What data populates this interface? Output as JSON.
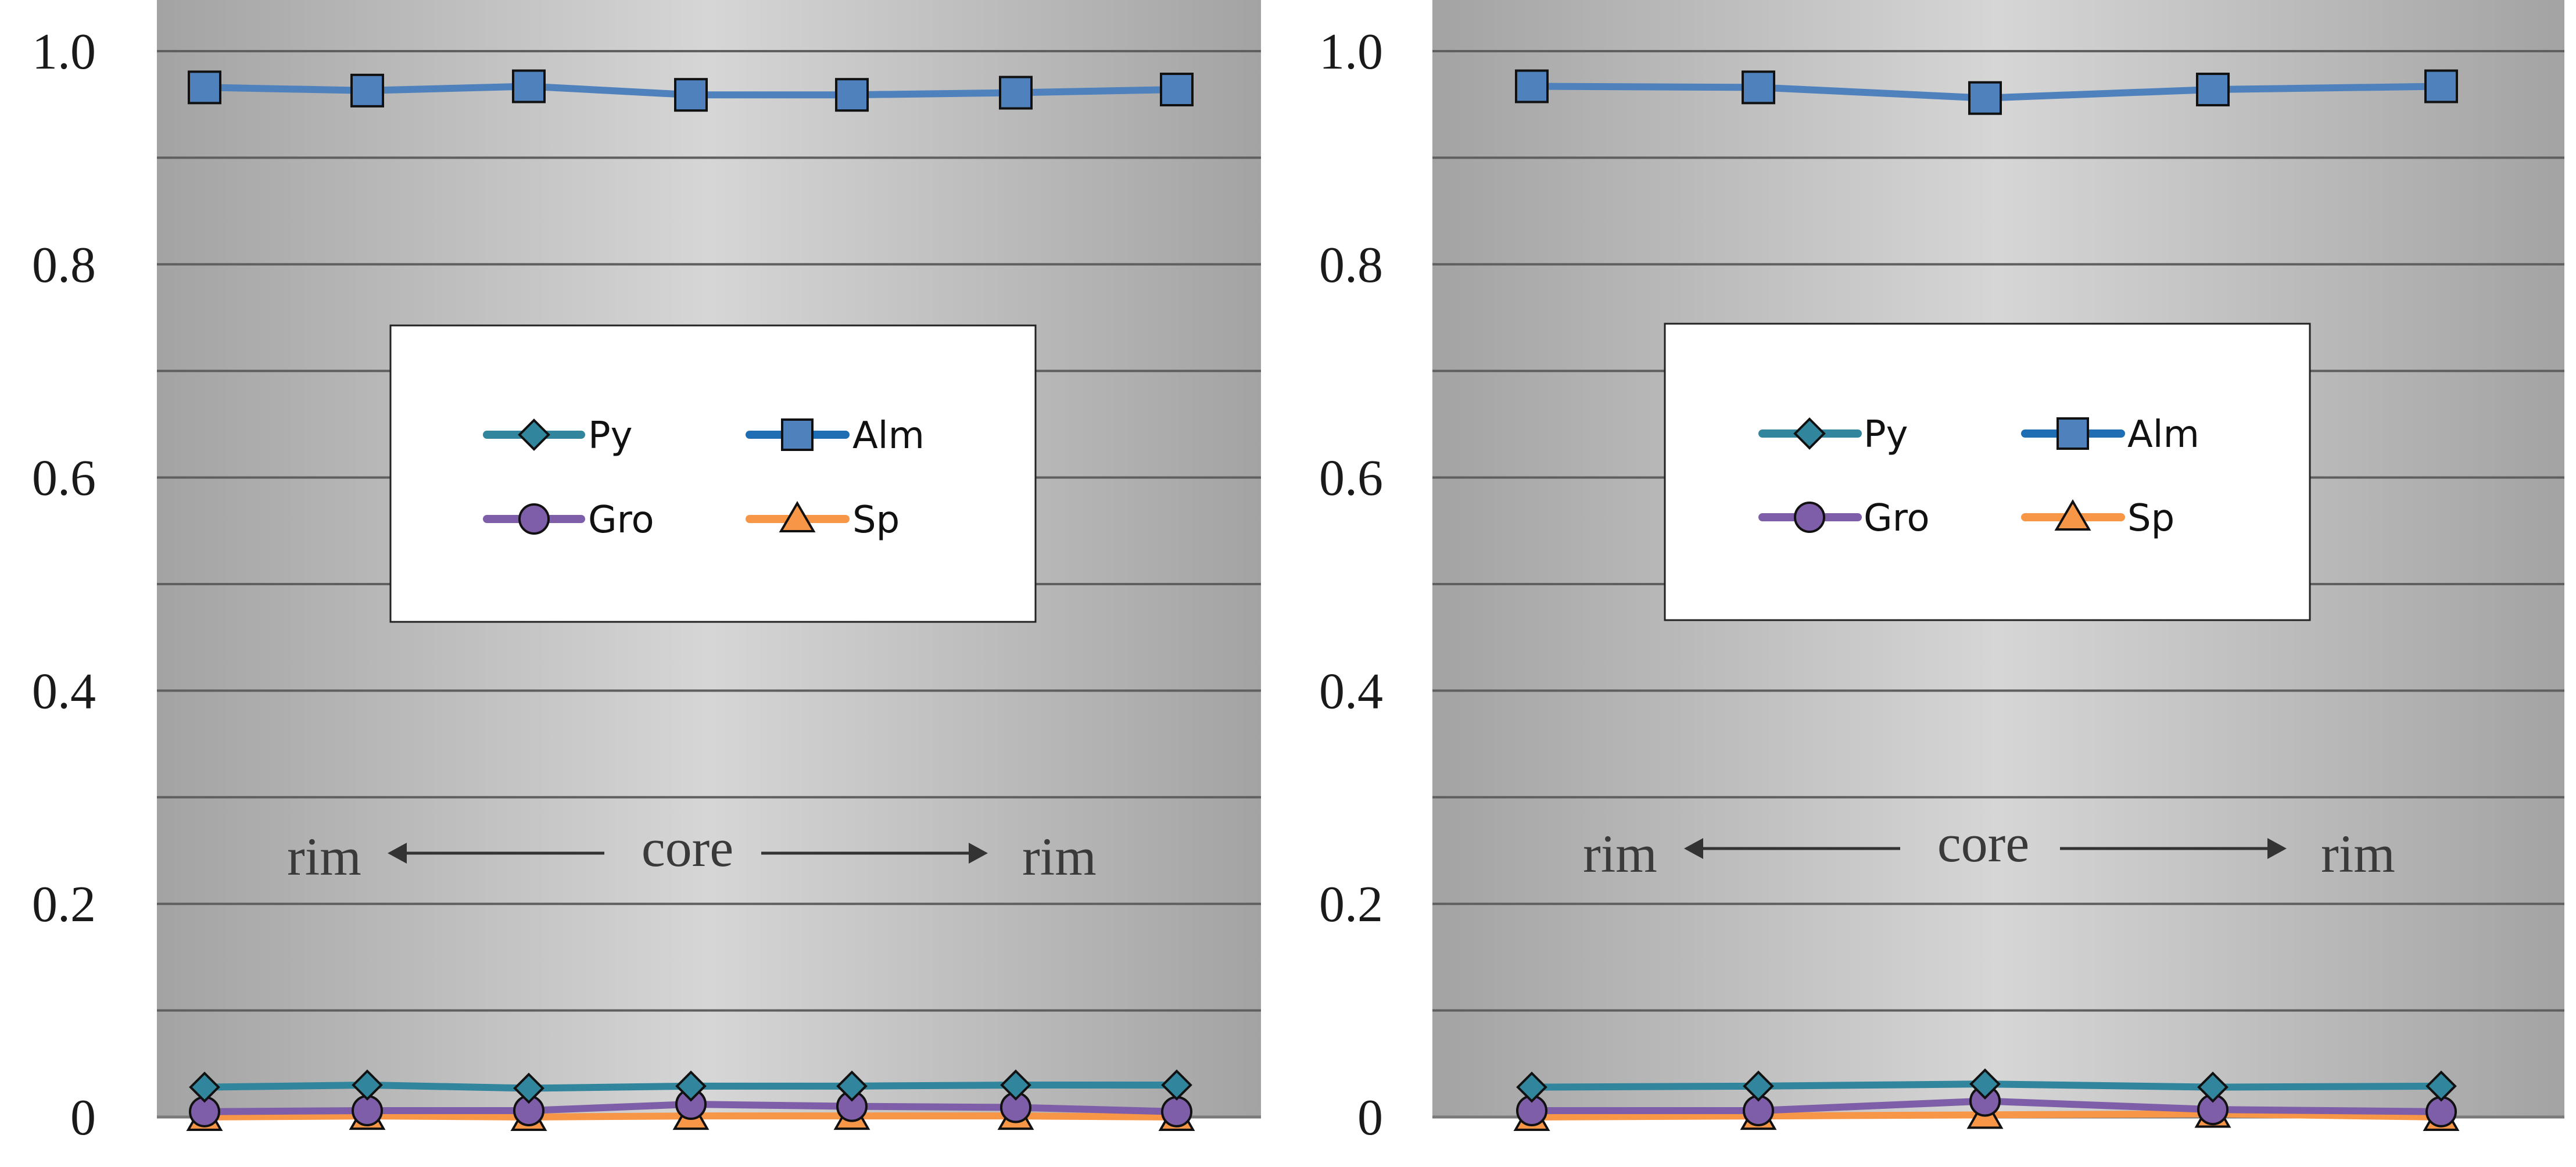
{
  "chart_data": [
    {
      "type": "line",
      "title": "",
      "xlabel": "",
      "ylabel": "",
      "ylim": [
        0,
        1.0
      ],
      "grid": true,
      "y_ticks": [
        {
          "value": 0.0,
          "label": "0"
        },
        {
          "value": 0.2,
          "label": "0.2"
        },
        {
          "value": 0.4,
          "label": "0.4"
        },
        {
          "value": 0.6,
          "label": "0.6"
        },
        {
          "value": 0.8,
          "label": "0.8"
        },
        {
          "value": 1.0,
          "label": "1.0"
        }
      ],
      "gridlines": [
        0.1,
        0.2,
        0.3,
        0.4,
        0.5,
        0.6,
        0.7,
        0.8,
        0.9,
        1.0
      ],
      "x": [
        1,
        2,
        3,
        4,
        5,
        6,
        7
      ],
      "legend_placement": "center",
      "annotations": {
        "left": "rim",
        "center": "core",
        "right": "rim"
      },
      "series": [
        {
          "name": "Py",
          "color": "#31859c",
          "marker": "diamond",
          "values": [
            0.028,
            0.03,
            0.027,
            0.029,
            0.029,
            0.03,
            0.03
          ]
        },
        {
          "name": "Alm",
          "color": "#4f81bd",
          "marker": "square",
          "values": [
            0.966,
            0.963,
            0.967,
            0.959,
            0.959,
            0.961,
            0.964
          ]
        },
        {
          "name": "Gro",
          "color": "#7e5ea8",
          "marker": "circle",
          "values": [
            0.005,
            0.006,
            0.006,
            0.012,
            0.01,
            0.009,
            0.005
          ]
        },
        {
          "name": "Sp",
          "color": "#f79646",
          "marker": "triangle",
          "values": [
            0.0,
            0.001,
            0.0,
            0.001,
            0.001,
            0.001,
            0.0
          ]
        }
      ]
    },
    {
      "type": "line",
      "title": "",
      "xlabel": "",
      "ylabel": "",
      "ylim": [
        0,
        1.0
      ],
      "grid": true,
      "y_ticks": [
        {
          "value": 0.0,
          "label": "0"
        },
        {
          "value": 0.2,
          "label": "0.2"
        },
        {
          "value": 0.4,
          "label": "0.4"
        },
        {
          "value": 0.6,
          "label": "0.6"
        },
        {
          "value": 0.8,
          "label": "0.8"
        },
        {
          "value": 1.0,
          "label": "1.0"
        }
      ],
      "gridlines": [
        0.1,
        0.2,
        0.3,
        0.4,
        0.5,
        0.6,
        0.7,
        0.8,
        0.9,
        1.0
      ],
      "x": [
        1,
        2,
        3,
        4,
        5
      ],
      "legend_placement": "center",
      "annotations": {
        "left": "rim",
        "center": "core",
        "right": "rim"
      },
      "series": [
        {
          "name": "Py",
          "color": "#31859c",
          "marker": "diamond",
          "values": [
            0.028,
            0.029,
            0.031,
            0.028,
            0.029
          ]
        },
        {
          "name": "Alm",
          "color": "#4f81bd",
          "marker": "square",
          "values": [
            0.967,
            0.966,
            0.956,
            0.964,
            0.967
          ]
        },
        {
          "name": "Gro",
          "color": "#7e5ea8",
          "marker": "circle",
          "values": [
            0.006,
            0.006,
            0.015,
            0.007,
            0.005
          ]
        },
        {
          "name": "Sp",
          "color": "#f79646",
          "marker": "triangle",
          "values": [
            0.0,
            0.001,
            0.002,
            0.003,
            0.0
          ]
        }
      ]
    }
  ]
}
